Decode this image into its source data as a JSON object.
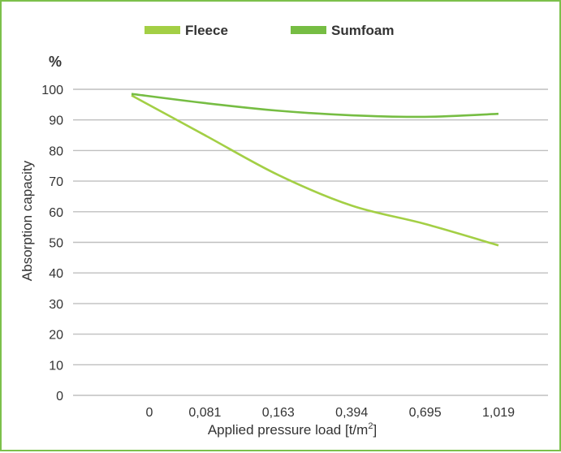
{
  "chart_data": {
    "type": "line",
    "title": "",
    "xlabel": "Applied pressure load [t/m",
    "xlabel_superscript": "2",
    "xlabel_suffix": "]",
    "ylabel": "Absorption capacity",
    "y_unit": "%",
    "categories": [
      "0",
      "0,081",
      "0,163",
      "0,394",
      "0,695",
      "1,019"
    ],
    "ylim": [
      0,
      100
    ],
    "y_ticks": [
      "0",
      "10",
      "20",
      "30",
      "40",
      "50",
      "60",
      "70",
      "80",
      "90",
      "100"
    ],
    "grid": true,
    "legend_position": "top",
    "series": [
      {
        "name": "Fleece",
        "color": "#a3cf45",
        "values": [
          98,
          85,
          72,
          62,
          56,
          49
        ]
      },
      {
        "name": "Sumfoam",
        "color": "#76bd43",
        "values": [
          98.5,
          95.5,
          93,
          91.5,
          91,
          92
        ]
      }
    ]
  }
}
